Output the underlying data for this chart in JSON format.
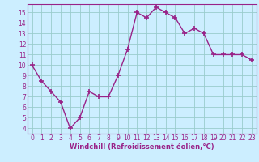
{
  "x": [
    0,
    1,
    2,
    3,
    4,
    5,
    6,
    7,
    8,
    9,
    10,
    11,
    12,
    13,
    14,
    15,
    16,
    17,
    18,
    19,
    20,
    21,
    22,
    23
  ],
  "y": [
    10,
    8.5,
    7.5,
    6.5,
    4,
    5,
    7.5,
    7,
    7,
    9,
    11.5,
    15,
    14.5,
    15.5,
    15,
    14.5,
    13,
    13.5,
    13,
    11,
    11,
    11,
    11,
    10.5
  ],
  "line_color": "#992288",
  "marker": "+",
  "marker_size": 4,
  "marker_lw": 1.2,
  "bg_color": "#cceeff",
  "grid_color": "#99cccc",
  "xlabel": "Windchill (Refroidissement éolien,°C)",
  "xlabel_color": "#992288",
  "tick_color": "#992288",
  "spine_color": "#992288",
  "ylim": [
    3.5,
    15.8
  ],
  "xlim": [
    -0.5,
    23.5
  ],
  "yticks": [
    4,
    5,
    6,
    7,
    8,
    9,
    10,
    11,
    12,
    13,
    14,
    15
  ],
  "xticks": [
    0,
    1,
    2,
    3,
    4,
    5,
    6,
    7,
    8,
    9,
    10,
    11,
    12,
    13,
    14,
    15,
    16,
    17,
    18,
    19,
    20,
    21,
    22,
    23
  ],
  "tick_fontsize": 5.5,
  "xlabel_fontsize": 6.0,
  "linewidth": 1.0
}
